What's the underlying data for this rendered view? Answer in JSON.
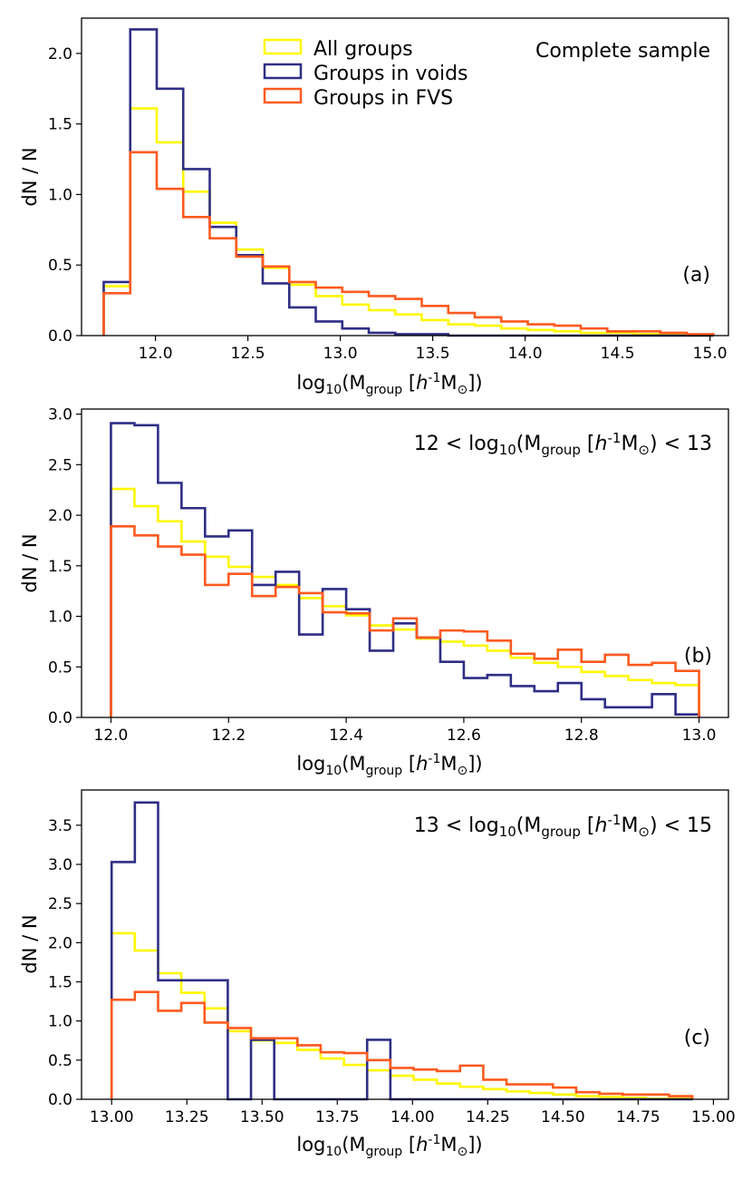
{
  "colors": {
    "all": "#FFF700",
    "voids": "#2E2E86",
    "fvs": "#FF5A1F"
  },
  "legend": {
    "all": "All groups",
    "voids": "Groups in voids",
    "fvs": "Groups in FVS"
  },
  "common": {
    "ylabel": "dN / N",
    "xlabel": {
      "pre": "log",
      "sub": "10",
      "open": "(M",
      "group": "group",
      "bracket": " [",
      "h": "h",
      "exp": "-1",
      "msun": "M",
      "odot": "⊙",
      "close": "])"
    }
  },
  "chart_data": [
    {
      "type": "histogram",
      "panel_label": "(a)",
      "corner_title": "Complete sample",
      "xlim": [
        11.6,
        15.1
      ],
      "ylim": [
        0,
        2.25
      ],
      "xticks": [
        12.0,
        12.5,
        13.0,
        13.5,
        14.0,
        14.5,
        15.0
      ],
      "xtick_labels": [
        "12.0",
        "12.5",
        "13.0",
        "13.5",
        "14.0",
        "14.5",
        "15.0"
      ],
      "yticks": [
        0.0,
        0.5,
        1.0,
        1.5,
        2.0
      ],
      "ytick_labels": [
        "0.0",
        "0.5",
        "1.0",
        "1.5",
        "2.0"
      ],
      "bin_start": 11.72,
      "bin_width": 0.1434,
      "series": [
        {
          "name": "All groups",
          "key": "all",
          "values": [
            0.35,
            1.61,
            1.37,
            1.02,
            0.8,
            0.61,
            0.48,
            0.36,
            0.28,
            0.22,
            0.18,
            0.15,
            0.11,
            0.08,
            0.07,
            0.05,
            0.04,
            0.03,
            0.02,
            0.02,
            0.01,
            0.01,
            0.0
          ]
        },
        {
          "name": "Groups in voids",
          "key": "voids",
          "values": [
            0.38,
            2.17,
            1.75,
            1.18,
            0.77,
            0.57,
            0.37,
            0.2,
            0.1,
            0.05,
            0.02,
            0.01,
            0.01,
            0.0,
            0.0,
            0.0,
            0.0,
            0.0,
            0.0,
            0.0,
            0.0,
            0.0,
            0.0
          ]
        },
        {
          "name": "Groups in FVS",
          "key": "fvs",
          "values": [
            0.3,
            1.3,
            1.04,
            0.84,
            0.69,
            0.56,
            0.49,
            0.38,
            0.34,
            0.31,
            0.28,
            0.26,
            0.21,
            0.16,
            0.13,
            0.1,
            0.08,
            0.07,
            0.05,
            0.03,
            0.03,
            0.02,
            0.01
          ]
        }
      ]
    },
    {
      "type": "histogram",
      "panel_label": "(b)",
      "corner_title": {
        "lo": "12 < ",
        "hi": ") < 13"
      },
      "xlim": [
        11.95,
        13.05
      ],
      "ylim": [
        0,
        3.05
      ],
      "xticks": [
        12.0,
        12.2,
        12.4,
        12.6,
        12.8,
        13.0
      ],
      "xtick_labels": [
        "12.0",
        "12.2",
        "12.4",
        "12.6",
        "12.8",
        "13.0"
      ],
      "yticks": [
        0.0,
        0.5,
        1.0,
        1.5,
        2.0,
        2.5,
        3.0
      ],
      "ytick_labels": [
        "0.0",
        "0.5",
        "1.0",
        "1.5",
        "2.0",
        "2.5",
        "3.0"
      ],
      "bin_start": 12.0,
      "bin_width": 0.04,
      "series": [
        {
          "name": "All groups",
          "key": "all",
          "values": [
            2.26,
            2.09,
            1.94,
            1.74,
            1.59,
            1.49,
            1.39,
            1.31,
            1.18,
            1.1,
            1.01,
            0.91,
            0.87,
            0.78,
            0.75,
            0.71,
            0.66,
            0.59,
            0.54,
            0.5,
            0.45,
            0.41,
            0.37,
            0.34,
            0.32
          ]
        },
        {
          "name": "Groups in voids",
          "key": "voids",
          "values": [
            2.91,
            2.89,
            2.32,
            2.07,
            1.79,
            1.85,
            1.31,
            1.44,
            0.82,
            1.27,
            1.07,
            0.66,
            0.93,
            0.79,
            0.55,
            0.39,
            0.42,
            0.31,
            0.26,
            0.34,
            0.18,
            0.1,
            0.1,
            0.23,
            0.03
          ]
        },
        {
          "name": "Groups in FVS",
          "key": "fvs",
          "values": [
            1.89,
            1.8,
            1.69,
            1.61,
            1.31,
            1.42,
            1.2,
            1.29,
            1.23,
            1.04,
            1.03,
            0.86,
            0.98,
            0.79,
            0.86,
            0.85,
            0.76,
            0.63,
            0.58,
            0.67,
            0.55,
            0.62,
            0.52,
            0.54,
            0.46
          ]
        }
      ]
    },
    {
      "type": "histogram",
      "panel_label": "(c)",
      "corner_title": {
        "lo": "13 < ",
        "hi": ") < 15"
      },
      "xlim": [
        12.9,
        15.05
      ],
      "ylim": [
        0,
        3.95
      ],
      "xticks": [
        13.0,
        13.25,
        13.5,
        13.75,
        14.0,
        14.25,
        14.5,
        14.75,
        15.0
      ],
      "xtick_labels": [
        "13.00",
        "13.25",
        "13.50",
        "13.75",
        "14.00",
        "14.25",
        "14.50",
        "14.75",
        "15.00"
      ],
      "yticks": [
        0.0,
        0.5,
        1.0,
        1.5,
        2.0,
        2.5,
        3.0,
        3.5
      ],
      "ytick_labels": [
        "0.0",
        "0.5",
        "1.0",
        "1.5",
        "2.0",
        "2.5",
        "3.0",
        "3.5"
      ],
      "bin_start": 13.0,
      "bin_width": 0.0772,
      "series": [
        {
          "name": "All groups",
          "key": "all",
          "values": [
            2.12,
            1.9,
            1.61,
            1.36,
            1.16,
            0.87,
            0.75,
            0.72,
            0.63,
            0.52,
            0.44,
            0.37,
            0.3,
            0.25,
            0.2,
            0.16,
            0.13,
            0.1,
            0.08,
            0.06,
            0.04,
            0.03,
            0.02,
            0.01,
            0.01
          ]
        },
        {
          "name": "Groups in voids",
          "key": "voids",
          "values": [
            3.03,
            3.79,
            1.52,
            1.52,
            1.52,
            0.0,
            0.76,
            0.0,
            0.0,
            0.0,
            0.0,
            0.76,
            0.0,
            0.0,
            0.0,
            0.0,
            0.0,
            0.0,
            0.0,
            0.0,
            0.0,
            0.0,
            0.0,
            0.0,
            0.0
          ]
        },
        {
          "name": "Groups in FVS",
          "key": "fvs",
          "values": [
            1.27,
            1.37,
            1.13,
            1.23,
            0.98,
            0.91,
            0.78,
            0.78,
            0.69,
            0.6,
            0.59,
            0.5,
            0.4,
            0.38,
            0.36,
            0.43,
            0.25,
            0.19,
            0.19,
            0.15,
            0.09,
            0.07,
            0.06,
            0.06,
            0.04
          ]
        }
      ]
    }
  ]
}
